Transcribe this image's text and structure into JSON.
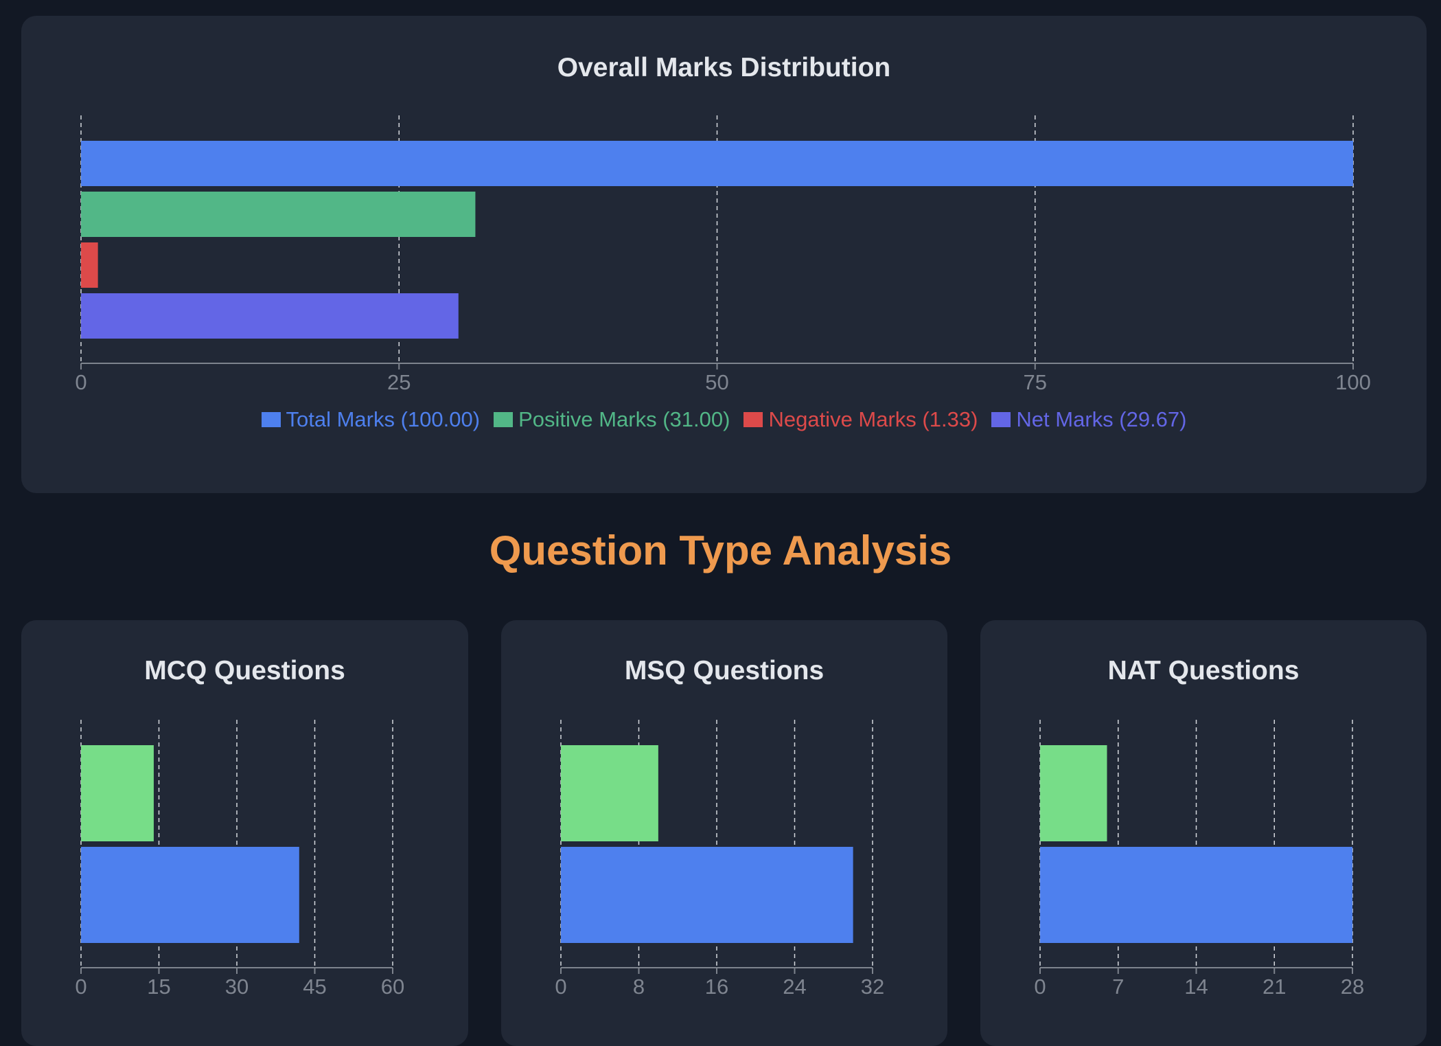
{
  "chart_data": [
    {
      "id": "overall",
      "type": "bar",
      "orientation": "horizontal",
      "title": "Overall Marks Distribution",
      "categories": [
        "Total Marks",
        "Positive Marks",
        "Negative Marks",
        "Net Marks"
      ],
      "values": [
        100.0,
        31.0,
        1.33,
        29.67
      ],
      "colors": [
        "#4e80ee",
        "#52b787",
        "#dd4a4a",
        "#6366e6"
      ],
      "xlim": [
        0,
        100
      ],
      "xticks": [
        "0",
        "25",
        "50",
        "75",
        "100"
      ],
      "grid": true,
      "legend": [
        {
          "label": "Total Marks (100.00)",
          "color": "#4e80ee"
        },
        {
          "label": "Positive Marks (31.00)",
          "color": "#52b787"
        },
        {
          "label": "Negative Marks (1.33)",
          "color": "#dd4a4a"
        },
        {
          "label": "Net Marks (29.67)",
          "color": "#6366e6"
        }
      ],
      "legend_position": "bottom"
    },
    {
      "id": "mcq",
      "type": "bar",
      "orientation": "horizontal",
      "title": "MCQ Questions",
      "values": [
        14,
        42
      ],
      "colors": [
        "#77dd88",
        "#4e80ee"
      ],
      "xlim": [
        0,
        60
      ],
      "xticks": [
        "0",
        "15",
        "30",
        "45",
        "60"
      ],
      "grid": true
    },
    {
      "id": "msq",
      "type": "bar",
      "orientation": "horizontal",
      "title": "MSQ Questions",
      "values": [
        10,
        30
      ],
      "colors": [
        "#77dd88",
        "#4e80ee"
      ],
      "xlim": [
        0,
        32
      ],
      "xticks": [
        "0",
        "8",
        "16",
        "24",
        "32"
      ],
      "grid": true
    },
    {
      "id": "nat",
      "type": "bar",
      "orientation": "horizontal",
      "title": "NAT Questions",
      "values": [
        6,
        28
      ],
      "colors": [
        "#77dd88",
        "#4e80ee"
      ],
      "xlim": [
        0,
        28
      ],
      "xticks": [
        "0",
        "7",
        "14",
        "21",
        "28"
      ],
      "grid": true
    }
  ],
  "section": {
    "heading": "Question Type Analysis"
  }
}
